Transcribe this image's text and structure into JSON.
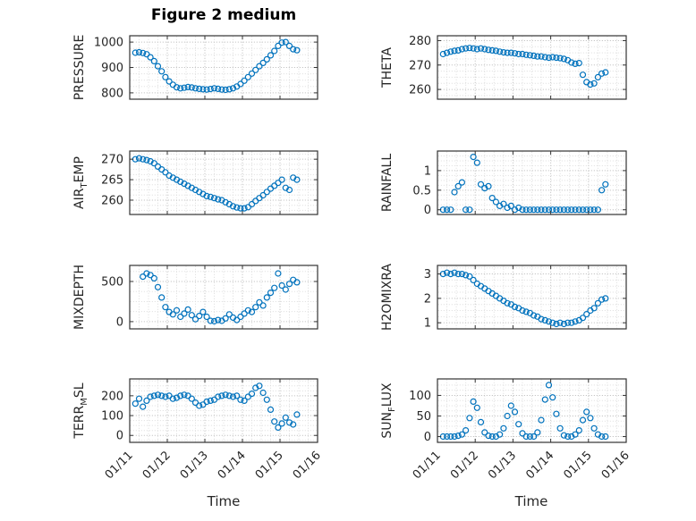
{
  "figure": {
    "title": "Figure 2 medium",
    "xlabel": "Time",
    "marker_color": "#0072BD",
    "axis_color": "#333333",
    "grid_color": "#b8b8b8",
    "minor_grid_color": "#dcdcdc"
  },
  "chart_data": {
    "type": "scatter",
    "layout": "4x2 grid of subplots, open-circle markers, dotted grid, boxed axes",
    "xlabel": "Time",
    "x_tick_labels": [
      "01/11",
      "01/12",
      "01/13",
      "01/14",
      "01/15",
      "01/16"
    ],
    "x_range_days": [
      0,
      5
    ],
    "shared_x_days": [
      0.15,
      0.25,
      0.35,
      0.45,
      0.55,
      0.65,
      0.75,
      0.85,
      0.95,
      1.05,
      1.15,
      1.25,
      1.35,
      1.45,
      1.55,
      1.65,
      1.75,
      1.85,
      1.95,
      2.05,
      2.15,
      2.25,
      2.35,
      2.45,
      2.55,
      2.65,
      2.75,
      2.85,
      2.95,
      3.05,
      3.15,
      3.25,
      3.35,
      3.45,
      3.55,
      3.65,
      3.75,
      3.85,
      3.95,
      4.05,
      4.15,
      4.25,
      4.35,
      4.45
    ],
    "subplots": [
      {
        "name": "pressure",
        "ylabel": "PRESSURE",
        "yticks": [
          800,
          900,
          1000
        ],
        "ylim": [
          775,
          1025
        ],
        "minor_step": 25,
        "y": [
          958,
          960,
          957,
          952,
          940,
          925,
          905,
          885,
          862,
          845,
          832,
          822,
          818,
          820,
          823,
          821,
          818,
          816,
          814,
          813,
          815,
          818,
          816,
          813,
          812,
          814,
          818,
          825,
          835,
          848,
          862,
          876,
          890,
          905,
          918,
          932,
          948,
          965,
          985,
          998,
          1000,
          985,
          972,
          968
        ]
      },
      {
        "name": "theta",
        "ylabel": "THETA",
        "yticks": [
          260,
          270,
          280
        ],
        "ylim": [
          256,
          282
        ],
        "minor_step": 2.5,
        "y": [
          274.5,
          275,
          275.5,
          275.8,
          276,
          276.5,
          276.8,
          277,
          276.8,
          276.5,
          276.8,
          276.5,
          276.2,
          276,
          275.8,
          275.5,
          275.2,
          275,
          275,
          274.8,
          274.5,
          274.5,
          274.2,
          274,
          273.8,
          273.5,
          273.5,
          273.2,
          273,
          273.2,
          273,
          272.8,
          272.5,
          272,
          271,
          270.5,
          270.8,
          266,
          263,
          262,
          262.5,
          265,
          266.5,
          267
        ]
      },
      {
        "name": "air-temp",
        "ylabel": "AIR_TEMP",
        "yticks": [
          260,
          265,
          270
        ],
        "ylim": [
          256.5,
          272
        ],
        "minor_step": 1.25,
        "y": [
          270,
          270.2,
          270,
          269.8,
          269.5,
          269,
          268.2,
          267.5,
          266.8,
          266,
          265.5,
          265,
          264.5,
          264,
          263.5,
          263,
          262.5,
          262,
          261.5,
          261,
          260.8,
          260.5,
          260.2,
          260,
          259.5,
          259,
          258.5,
          258.2,
          258,
          258,
          258.3,
          259,
          259.8,
          260.5,
          261.2,
          262,
          262.8,
          263.5,
          264.2,
          265,
          263,
          262.5,
          265.5,
          265
        ]
      },
      {
        "name": "rainfall",
        "ylabel": "RAINFALL",
        "yticks": [
          0,
          0.5,
          1
        ],
        "ylim": [
          -0.12,
          1.5
        ],
        "minor_step": 0.125,
        "y": [
          0,
          0,
          0,
          0.45,
          0.6,
          0.7,
          0,
          0,
          1.35,
          1.2,
          0.65,
          0.55,
          0.6,
          0.3,
          0.2,
          0.1,
          0.15,
          0.05,
          0.1,
          0,
          0.05,
          0,
          0,
          0,
          0,
          0,
          0,
          0,
          0,
          0,
          0,
          0,
          0,
          0,
          0,
          0,
          0,
          0,
          0,
          0,
          0,
          0,
          0.5,
          0.65
        ]
      },
      {
        "name": "mixdepth",
        "ylabel": "MIXDEPTH",
        "yticks": [
          0,
          500
        ],
        "ylim": [
          -90,
          700
        ],
        "minor_step": 125,
        "y": [
          null,
          null,
          560,
          600,
          580,
          540,
          430,
          300,
          180,
          120,
          90,
          140,
          60,
          100,
          150,
          80,
          30,
          70,
          120,
          60,
          10,
          5,
          20,
          10,
          40,
          90,
          50,
          20,
          60,
          100,
          140,
          120,
          180,
          240,
          200,
          300,
          360,
          420,
          600,
          450,
          400,
          470,
          520,
          490
        ]
      },
      {
        "name": "h2omixra",
        "ylabel": "H2OMIXRA",
        "yticks": [
          1,
          2,
          3
        ],
        "ylim": [
          0.75,
          3.35
        ],
        "minor_step": 0.25,
        "y": [
          3,
          3.05,
          3,
          3.05,
          3,
          3,
          2.95,
          2.9,
          2.75,
          2.6,
          2.5,
          2.4,
          2.3,
          2.2,
          2.1,
          2,
          1.9,
          1.8,
          1.75,
          1.65,
          1.6,
          1.5,
          1.45,
          1.4,
          1.3,
          1.25,
          1.15,
          1.1,
          1.05,
          1,
          0.95,
          1,
          0.95,
          1,
          1,
          1.05,
          1.1,
          1.2,
          1.35,
          1.5,
          1.6,
          1.8,
          1.95,
          2
        ]
      },
      {
        "name": "terr-msl",
        "ylabel": "TERR_MSL",
        "yticks": [
          0,
          100,
          200
        ],
        "ylim": [
          -35,
          285
        ],
        "minor_step": 25,
        "y": [
          160,
          185,
          145,
          175,
          195,
          200,
          205,
          200,
          195,
          200,
          185,
          190,
          200,
          205,
          200,
          185,
          165,
          150,
          155,
          170,
          175,
          180,
          195,
          200,
          205,
          200,
          195,
          200,
          180,
          175,
          195,
          210,
          240,
          250,
          215,
          180,
          130,
          70,
          40,
          60,
          90,
          65,
          55,
          105
        ]
      },
      {
        "name": "sun-flux",
        "ylabel": "SUN_FLUX",
        "yticks": [
          0,
          50,
          100
        ],
        "ylim": [
          -14,
          140
        ],
        "minor_step": 12.5,
        "y": [
          0,
          0,
          0,
          0,
          2,
          5,
          15,
          45,
          85,
          70,
          35,
          10,
          2,
          0,
          0,
          5,
          20,
          50,
          75,
          60,
          30,
          8,
          0,
          0,
          0,
          10,
          40,
          90,
          125,
          95,
          55,
          20,
          3,
          0,
          0,
          5,
          15,
          40,
          60,
          45,
          20,
          5,
          0,
          0
        ]
      }
    ]
  }
}
